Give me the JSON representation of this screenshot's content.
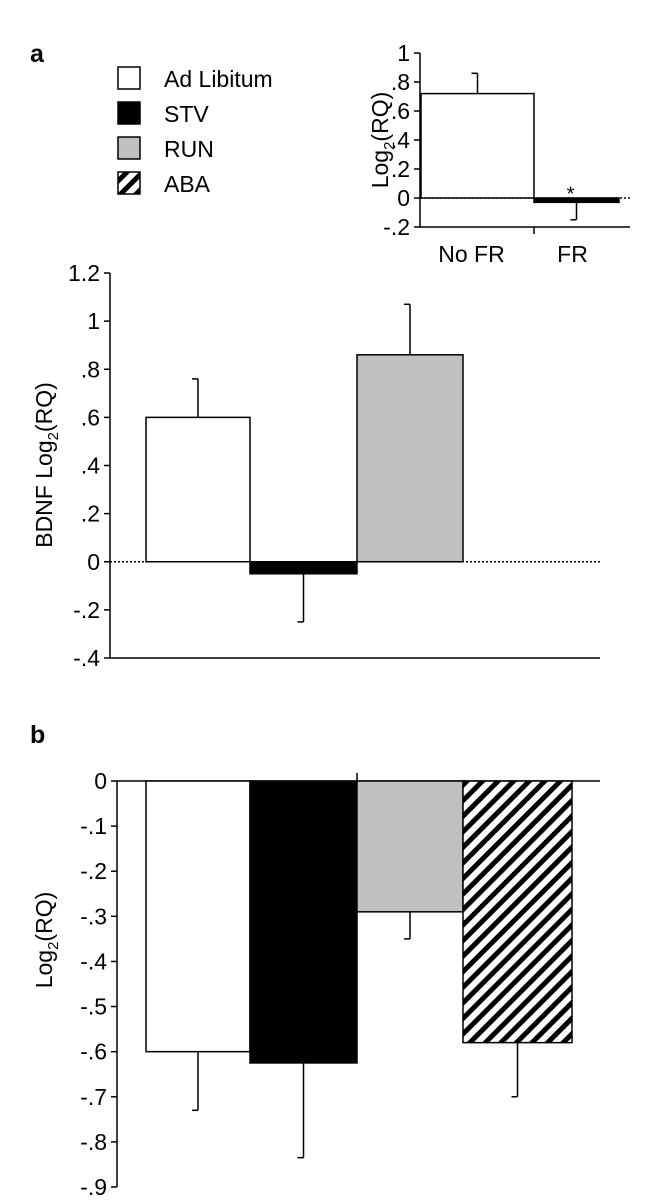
{
  "panel_labels": {
    "a": "a",
    "b": "b"
  },
  "legend": [
    {
      "label": "Ad Libitum",
      "fill": "white"
    },
    {
      "label": "STV",
      "fill": "black"
    },
    {
      "label": "RUN",
      "fill": "gray"
    },
    {
      "label": "ABA",
      "fill": "hatch"
    }
  ],
  "colors": {
    "white": "#ffffff",
    "black": "#000000",
    "gray": "#c0c0c0",
    "axis": "#000000"
  },
  "chart_data": [
    {
      "id": "inset",
      "type": "bar",
      "ylabel_main": "Log",
      "ylabel_sub": "2",
      "ylabel_tail": "(RQ)",
      "ylim": [
        -0.2,
        1.0
      ],
      "ticks": [
        {
          "v": 1.0,
          "label": "1"
        },
        {
          "v": 0.8,
          "label": ".8"
        },
        {
          "v": 0.6,
          "label": ".6"
        },
        {
          "v": 0.4,
          "label": ".4"
        },
        {
          "v": 0.2,
          "label": ".2"
        },
        {
          "v": 0.0,
          "label": "0"
        },
        {
          "v": -0.2,
          "label": "-.2"
        }
      ],
      "categories": [
        "No FR",
        "FR"
      ],
      "values": [
        0.72,
        -0.03
      ],
      "errors": [
        0.14,
        0.12
      ],
      "fills": [
        "white",
        "black"
      ],
      "annotations": [
        "",
        "*"
      ]
    },
    {
      "id": "bdnf",
      "type": "bar",
      "ylabel_main": "BDNF Log",
      "ylabel_sub": "2",
      "ylabel_tail": "(RQ)",
      "ylim": [
        -0.4,
        1.2
      ],
      "ticks": [
        {
          "v": 1.2,
          "label": "1.2"
        },
        {
          "v": 1.0,
          "label": "1"
        },
        {
          "v": 0.8,
          "label": ".8"
        },
        {
          "v": 0.6,
          "label": ".6"
        },
        {
          "v": 0.4,
          "label": ".4"
        },
        {
          "v": 0.2,
          "label": ".2"
        },
        {
          "v": 0.0,
          "label": "0"
        },
        {
          "v": -0.2,
          "label": "-.2"
        },
        {
          "v": -0.4,
          "label": "-.4"
        }
      ],
      "values": [
        0.6,
        -0.05,
        0.86
      ],
      "errors": [
        0.16,
        0.2,
        0.21
      ],
      "fills": [
        "white",
        "black",
        "gray"
      ]
    },
    {
      "id": "b",
      "type": "bar",
      "ylabel_main": "Log",
      "ylabel_sub": "2",
      "ylabel_tail": "(RQ)",
      "ylim": [
        -0.9,
        0.0
      ],
      "ticks": [
        {
          "v": 0.0,
          "label": "0"
        },
        {
          "v": -0.1,
          "label": "-.1"
        },
        {
          "v": -0.2,
          "label": "-.2"
        },
        {
          "v": -0.3,
          "label": "-.3"
        },
        {
          "v": -0.4,
          "label": "-.4"
        },
        {
          "v": -0.5,
          "label": "-.5"
        },
        {
          "v": -0.6,
          "label": "-.6"
        },
        {
          "v": -0.7,
          "label": "-.7"
        },
        {
          "v": -0.8,
          "label": "-.8"
        },
        {
          "v": -0.9,
          "label": "-.9"
        }
      ],
      "values": [
        -0.6,
        -0.625,
        -0.29,
        -0.58
      ],
      "errors": [
        0.13,
        0.21,
        0.06,
        0.12
      ],
      "fills": [
        "white",
        "black",
        "gray",
        "hatch"
      ]
    }
  ]
}
